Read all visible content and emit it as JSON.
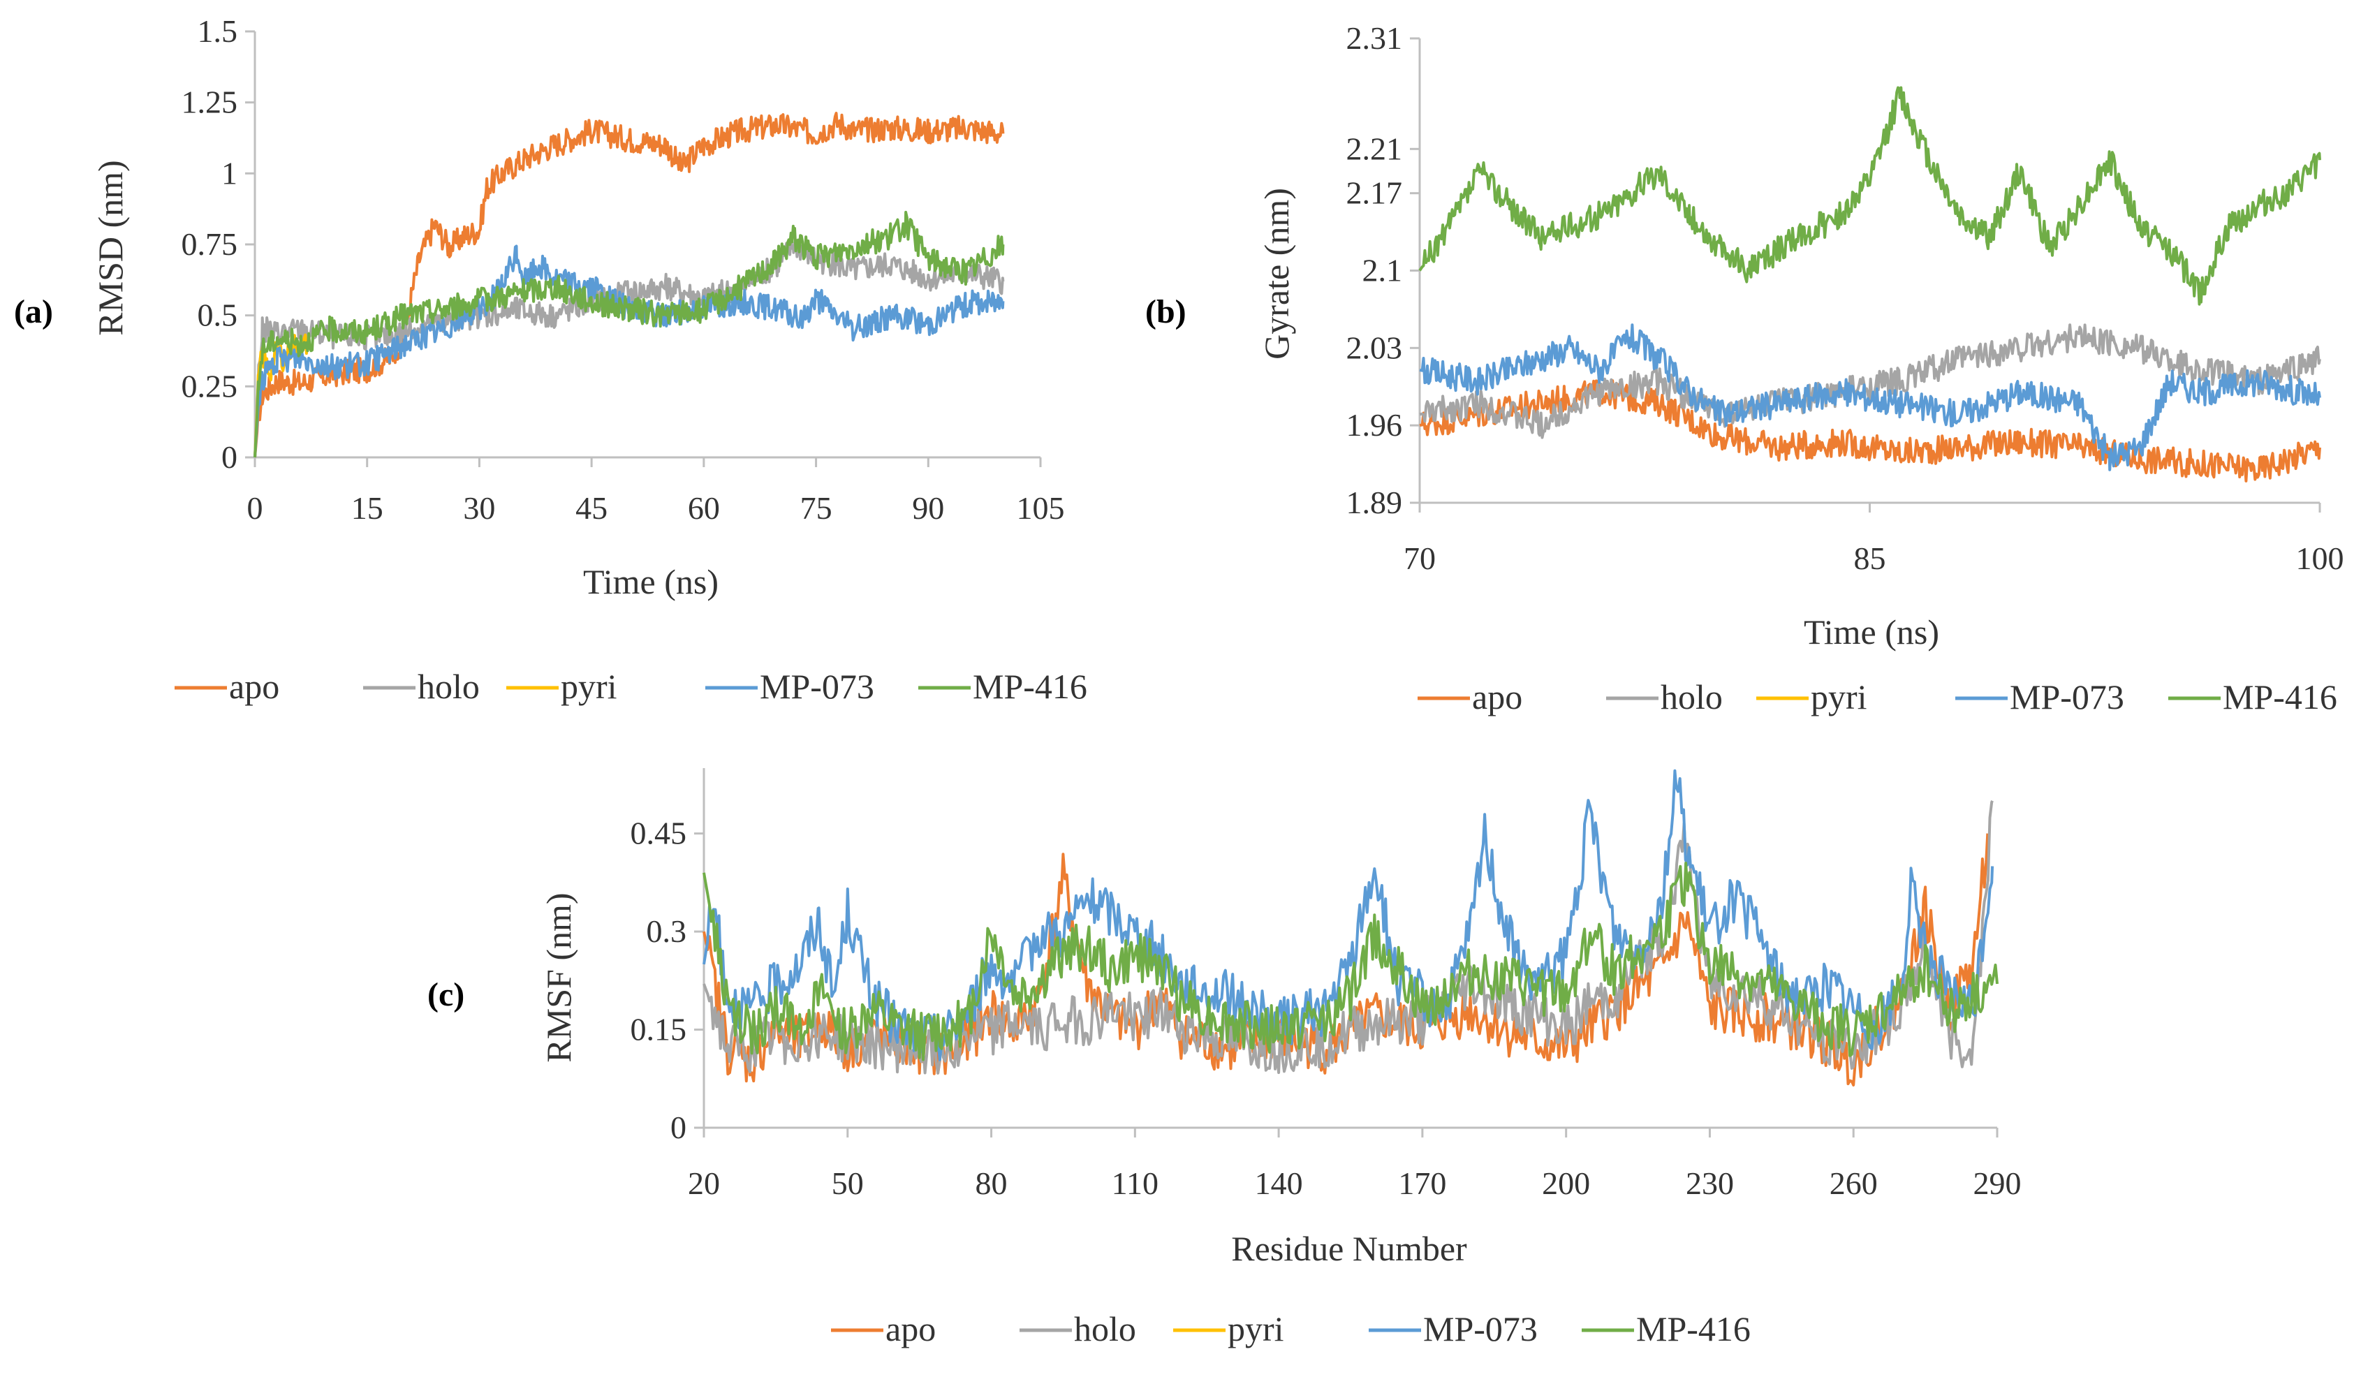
{
  "colors": {
    "apo": "#ED7D31",
    "holo": "#A5A5A5",
    "pyri": "#FFC000",
    "MP-073": "#5B9BD5",
    "MP-416": "#70AD47",
    "axis": "#BFBFBF"
  },
  "panel_labels": {
    "a": "(a)",
    "b": "(b)",
    "c": "(c)"
  },
  "chart_data": [
    {
      "id": "a",
      "type": "line",
      "xlabel": "Time (ns)",
      "ylabel": "RMSD (nm)",
      "xlim": [
        0,
        105
      ],
      "ylim": [
        0,
        1.5
      ],
      "xticks": [
        0,
        15,
        30,
        45,
        60,
        75,
        90,
        105
      ],
      "xtick_labels": [
        "0",
        "15",
        "30",
        "45",
        "60",
        "75",
        "90",
        "105"
      ],
      "yticks": [
        0,
        0.25,
        0.5,
        0.75,
        1,
        1.25,
        1.5
      ],
      "ytick_labels": [
        "0",
        "0.25",
        "0.5",
        "0.75",
        "1",
        "1.25",
        "1.5"
      ],
      "legend": [
        "apo",
        "holo",
        "pyri",
        "MP-073",
        "MP-416"
      ],
      "series": [
        {
          "name": "apo",
          "x": [
            0,
            0.5,
            1,
            3,
            6,
            10,
            15,
            18,
            20,
            21,
            22,
            24,
            26,
            28,
            30,
            31,
            33,
            36,
            40,
            45,
            50,
            55,
            57,
            60,
            65,
            70,
            75,
            78,
            80,
            85,
            90,
            95,
            100
          ],
          "y": [
            0,
            0.15,
            0.22,
            0.27,
            0.26,
            0.29,
            0.31,
            0.35,
            0.42,
            0.58,
            0.7,
            0.82,
            0.74,
            0.78,
            0.8,
            0.95,
            1.0,
            1.05,
            1.1,
            1.15,
            1.12,
            1.1,
            1.02,
            1.1,
            1.15,
            1.17,
            1.14,
            1.18,
            1.15,
            1.16,
            1.15,
            1.16,
            1.14
          ]
        },
        {
          "name": "holo",
          "x": [
            0,
            0.5,
            1,
            3,
            6,
            10,
            15,
            20,
            25,
            30,
            35,
            40,
            45,
            50,
            55,
            60,
            65,
            70,
            72,
            75,
            80,
            85,
            90,
            95,
            100
          ],
          "y": [
            0,
            0.3,
            0.45,
            0.44,
            0.45,
            0.43,
            0.42,
            0.44,
            0.48,
            0.5,
            0.52,
            0.5,
            0.55,
            0.58,
            0.6,
            0.56,
            0.6,
            0.68,
            0.75,
            0.7,
            0.66,
            0.68,
            0.63,
            0.65,
            0.62
          ]
        },
        {
          "name": "pyri",
          "x": [
            0,
            0.5,
            1,
            2,
            3,
            4,
            5,
            6,
            7
          ],
          "y": [
            0,
            0.28,
            0.36,
            0.3,
            0.38,
            0.34,
            0.4,
            0.38,
            0.4
          ]
        },
        {
          "name": "MP-073",
          "x": [
            0,
            0.5,
            1,
            3,
            6,
            10,
            15,
            20,
            25,
            30,
            33,
            35,
            36,
            38,
            40,
            45,
            50,
            55,
            60,
            65,
            70,
            73,
            75,
            80,
            85,
            90,
            95,
            100
          ],
          "y": [
            0,
            0.2,
            0.28,
            0.34,
            0.35,
            0.32,
            0.33,
            0.4,
            0.45,
            0.52,
            0.6,
            0.72,
            0.62,
            0.68,
            0.63,
            0.6,
            0.52,
            0.5,
            0.53,
            0.55,
            0.52,
            0.48,
            0.56,
            0.45,
            0.5,
            0.47,
            0.54,
            0.55
          ]
        },
        {
          "name": "MP-416",
          "x": [
            0,
            0.5,
            1,
            3,
            6,
            10,
            15,
            20,
            25,
            30,
            35,
            40,
            45,
            50,
            55,
            60,
            65,
            70,
            72,
            75,
            80,
            85,
            87,
            90,
            95,
            100
          ],
          "y": [
            0,
            0.25,
            0.38,
            0.42,
            0.4,
            0.45,
            0.44,
            0.5,
            0.52,
            0.55,
            0.58,
            0.6,
            0.55,
            0.52,
            0.5,
            0.52,
            0.6,
            0.7,
            0.78,
            0.7,
            0.74,
            0.78,
            0.82,
            0.7,
            0.65,
            0.75
          ]
        }
      ]
    },
    {
      "id": "b",
      "type": "line",
      "xlabel": "Time (ns)",
      "ylabel": "Gyrate (nm)",
      "xlim": [
        70,
        100
      ],
      "ylim": [
        1.89,
        2.31
      ],
      "xticks": [
        70,
        85,
        100
      ],
      "xtick_labels": [
        "70",
        "85",
        "100"
      ],
      "yticks": [
        1.89,
        1.96,
        2.03,
        2.1,
        2.17,
        2.21,
        2.31
      ],
      "ytick_labels": [
        "1.89",
        "1.96",
        "2.03",
        "2.1",
        "2.17",
        "2.21",
        "2.31"
      ],
      "legend": [
        "apo",
        "holo",
        "pyri",
        "MP-073",
        "MP-416"
      ],
      "series": [
        {
          "name": "apo",
          "x": [
            70,
            72,
            74,
            76,
            78,
            80,
            82,
            84,
            86,
            88,
            90,
            92,
            94,
            96,
            98,
            100
          ],
          "y": [
            1.96,
            1.97,
            1.98,
            1.99,
            1.98,
            1.95,
            1.94,
            1.945,
            1.935,
            1.94,
            1.945,
            1.94,
            1.93,
            1.925,
            1.92,
            1.94
          ]
        },
        {
          "name": "holo",
          "x": [
            70,
            72,
            74,
            76,
            78,
            80,
            82,
            84,
            86,
            88,
            90,
            92,
            94,
            96,
            98,
            100
          ],
          "y": [
            1.97,
            1.98,
            1.96,
            1.99,
            2.0,
            1.97,
            1.98,
            1.99,
            2.0,
            2.02,
            2.03,
            2.04,
            2.03,
            2.01,
            2.0,
            2.02
          ]
        },
        {
          "name": "MP-073",
          "x": [
            70,
            72,
            74,
            75,
            76,
            77,
            78,
            79,
            80,
            82,
            84,
            86,
            88,
            90,
            92,
            93,
            94,
            95,
            96,
            98,
            100
          ],
          "y": [
            2.01,
            2.0,
            2.02,
            2.03,
            2.01,
            2.04,
            2.02,
            1.99,
            1.97,
            1.98,
            1.99,
            1.98,
            1.97,
            1.99,
            1.98,
            1.93,
            1.94,
            2.0,
            1.99,
            2.0,
            1.985
          ]
        },
        {
          "name": "MP-416",
          "x": [
            70,
            71,
            72,
            73,
            74,
            76,
            78,
            79,
            80,
            81,
            82,
            84,
            85,
            86,
            87,
            88,
            89,
            90,
            91,
            92,
            93,
            94,
            95,
            96,
            97,
            98,
            99,
            100
          ],
          "y": [
            2.1,
            2.14,
            2.19,
            2.16,
            2.13,
            2.15,
            2.19,
            2.15,
            2.12,
            2.1,
            2.12,
            2.15,
            2.18,
            2.26,
            2.2,
            2.15,
            2.13,
            2.19,
            2.12,
            2.16,
            2.2,
            2.14,
            2.12,
            2.08,
            2.14,
            2.16,
            2.17,
            2.2
          ]
        }
      ]
    },
    {
      "id": "c",
      "type": "line",
      "xlabel": "Residue Number",
      "ylabel": "RMSF (nm)",
      "xlim": [
        20,
        290
      ],
      "ylim": [
        0,
        0.55
      ],
      "xticks": [
        20,
        50,
        80,
        110,
        140,
        170,
        200,
        230,
        260,
        290
      ],
      "xtick_labels": [
        "20",
        "50",
        "80",
        "110",
        "140",
        "170",
        "200",
        "230",
        "260",
        "290"
      ],
      "yticks": [
        0,
        0.15,
        0.3,
        0.45
      ],
      "ytick_labels": [
        "0",
        "0.15",
        "0.3",
        "0.45"
      ],
      "legend": [
        "apo",
        "holo",
        "pyri",
        "MP-073",
        "MP-416"
      ],
      "series": [
        {
          "name": "apo",
          "x": [
            20,
            25,
            30,
            35,
            40,
            45,
            50,
            55,
            60,
            65,
            70,
            75,
            80,
            85,
            90,
            95,
            100,
            105,
            110,
            115,
            120,
            130,
            140,
            150,
            160,
            170,
            180,
            190,
            200,
            205,
            210,
            220,
            225,
            230,
            240,
            250,
            260,
            270,
            275,
            280,
            285,
            288
          ],
          "y": [
            0.3,
            0.12,
            0.1,
            0.15,
            0.13,
            0.16,
            0.12,
            0.14,
            0.13,
            0.12,
            0.11,
            0.13,
            0.18,
            0.15,
            0.2,
            0.38,
            0.22,
            0.17,
            0.15,
            0.2,
            0.14,
            0.12,
            0.14,
            0.12,
            0.17,
            0.15,
            0.18,
            0.14,
            0.12,
            0.15,
            0.18,
            0.24,
            0.32,
            0.18,
            0.17,
            0.15,
            0.1,
            0.2,
            0.33,
            0.18,
            0.25,
            0.45
          ]
        },
        {
          "name": "holo",
          "x": [
            20,
            25,
            30,
            35,
            40,
            45,
            50,
            55,
            60,
            65,
            70,
            75,
            80,
            85,
            90,
            95,
            100,
            105,
            110,
            115,
            120,
            130,
            140,
            150,
            160,
            170,
            180,
            190,
            200,
            205,
            210,
            220,
            225,
            230,
            240,
            250,
            260,
            270,
            275,
            280,
            285,
            289
          ],
          "y": [
            0.22,
            0.12,
            0.12,
            0.14,
            0.13,
            0.15,
            0.13,
            0.13,
            0.12,
            0.12,
            0.12,
            0.14,
            0.15,
            0.16,
            0.15,
            0.17,
            0.16,
            0.18,
            0.17,
            0.18,
            0.15,
            0.13,
            0.12,
            0.13,
            0.16,
            0.16,
            0.22,
            0.18,
            0.15,
            0.19,
            0.2,
            0.3,
            0.44,
            0.22,
            0.2,
            0.15,
            0.12,
            0.18,
            0.28,
            0.14,
            0.12,
            0.5
          ]
        },
        {
          "name": "MP-073",
          "x": [
            20,
            22,
            25,
            30,
            35,
            40,
            44,
            47,
            50,
            55,
            60,
            65,
            70,
            75,
            80,
            85,
            90,
            95,
            100,
            105,
            110,
            115,
            120,
            130,
            140,
            150,
            155,
            160,
            165,
            170,
            175,
            180,
            183,
            186,
            190,
            195,
            200,
            205,
            210,
            215,
            220,
            223,
            226,
            230,
            235,
            240,
            245,
            250,
            255,
            260,
            265,
            270,
            272,
            275,
            280,
            285,
            289
          ],
          "y": [
            0.25,
            0.34,
            0.2,
            0.18,
            0.22,
            0.25,
            0.32,
            0.2,
            0.33,
            0.2,
            0.16,
            0.14,
            0.14,
            0.18,
            0.25,
            0.22,
            0.3,
            0.3,
            0.35,
            0.33,
            0.3,
            0.27,
            0.22,
            0.2,
            0.16,
            0.18,
            0.25,
            0.4,
            0.22,
            0.2,
            0.18,
            0.3,
            0.45,
            0.35,
            0.25,
            0.22,
            0.26,
            0.48,
            0.3,
            0.27,
            0.35,
            0.53,
            0.4,
            0.3,
            0.35,
            0.3,
            0.22,
            0.2,
            0.22,
            0.18,
            0.15,
            0.22,
            0.36,
            0.28,
            0.2,
            0.18,
            0.4
          ]
        },
        {
          "name": "MP-416",
          "x": [
            20,
            25,
            30,
            35,
            40,
            45,
            50,
            55,
            60,
            65,
            70,
            75,
            80,
            85,
            90,
            95,
            100,
            105,
            110,
            115,
            120,
            130,
            140,
            150,
            155,
            160,
            170,
            180,
            190,
            200,
            205,
            210,
            220,
            225,
            230,
            240,
            250,
            260,
            270,
            275,
            280,
            285,
            290
          ],
          "y": [
            0.39,
            0.18,
            0.14,
            0.18,
            0.16,
            0.2,
            0.14,
            0.18,
            0.15,
            0.14,
            0.15,
            0.16,
            0.3,
            0.2,
            0.22,
            0.27,
            0.28,
            0.24,
            0.26,
            0.25,
            0.19,
            0.16,
            0.15,
            0.17,
            0.2,
            0.3,
            0.18,
            0.24,
            0.22,
            0.2,
            0.3,
            0.24,
            0.3,
            0.38,
            0.25,
            0.22,
            0.18,
            0.14,
            0.2,
            0.25,
            0.18,
            0.2,
            0.22
          ]
        }
      ]
    }
  ]
}
